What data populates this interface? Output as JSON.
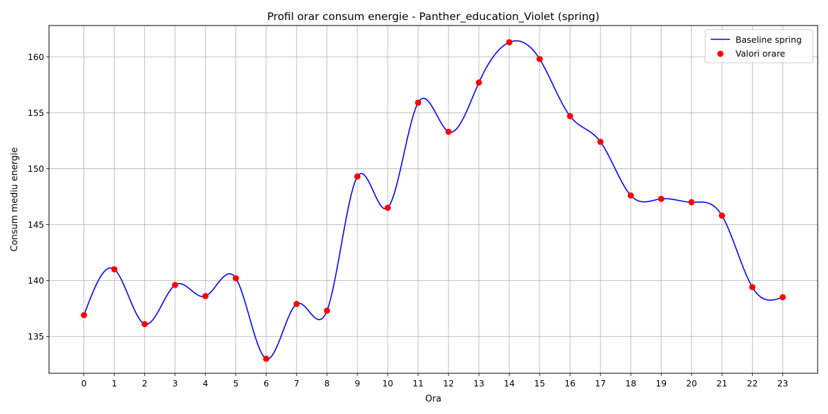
{
  "chart_data": {
    "type": "line",
    "title": "Profil orar consum energie - Panther_education_Violet (spring)",
    "xlabel": "Ora",
    "ylabel": "Consum mediu energie",
    "x": [
      0,
      1,
      2,
      3,
      4,
      5,
      6,
      7,
      8,
      9,
      10,
      11,
      12,
      13,
      14,
      15,
      16,
      17,
      18,
      19,
      20,
      21,
      22,
      23
    ],
    "xlim": [
      -1.15,
      24.15
    ],
    "ylim": [
      131.7,
      162.8
    ],
    "xticks": [
      "0",
      "1",
      "2",
      "3",
      "4",
      "5",
      "6",
      "7",
      "8",
      "9",
      "10",
      "11",
      "12",
      "13",
      "14",
      "15",
      "16",
      "17",
      "18",
      "19",
      "20",
      "21",
      "22",
      "23"
    ],
    "yticks": [
      "135",
      "140",
      "145",
      "150",
      "155",
      "160"
    ],
    "grid": true,
    "legend_position": "top-right",
    "series": [
      {
        "name": "Baseline spring",
        "kind": "line",
        "color": "#0000ff",
        "smooth": "cubic-spline",
        "values": [
          136.9,
          141.0,
          136.1,
          139.6,
          138.6,
          140.2,
          133.0,
          137.9,
          137.3,
          149.3,
          146.5,
          155.9,
          153.3,
          157.7,
          161.3,
          159.8,
          154.7,
          152.4,
          147.6,
          147.3,
          147.0,
          145.8,
          139.4,
          138.5
        ]
      },
      {
        "name": "Valori orare",
        "kind": "scatter",
        "color": "#ff0000",
        "values": [
          136.9,
          141.0,
          136.1,
          139.6,
          138.6,
          140.2,
          133.0,
          137.9,
          137.3,
          149.3,
          146.5,
          155.9,
          153.3,
          157.7,
          161.3,
          159.8,
          154.7,
          152.4,
          147.6,
          147.3,
          147.0,
          145.8,
          139.4,
          138.5
        ]
      }
    ]
  }
}
